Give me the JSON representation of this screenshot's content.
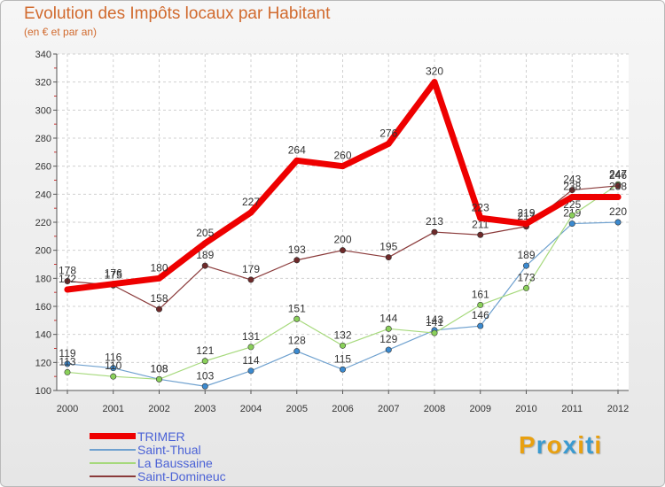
{
  "header": {
    "title": "Evolution des Impôts locaux par Habitant",
    "subtitle": "(en € et par an)"
  },
  "logo": {
    "text": "Proxiti",
    "colors": [
      "#e8a010",
      "#3a9ad0",
      "#e8a010",
      "#3a9ad0",
      "#e8a010",
      "#3a9ad0",
      "#e8a010"
    ]
  },
  "chart_data": {
    "type": "line",
    "title": "Evolution des Impôts locaux par Habitant",
    "subtitle": "(en € et par an)",
    "xlabel": "",
    "ylabel": "",
    "ylim": [
      100,
      340
    ],
    "yticks": [
      100,
      120,
      140,
      160,
      180,
      200,
      220,
      240,
      260,
      280,
      300,
      320,
      340
    ],
    "grid": true,
    "legend_position": "bottom-left",
    "x": [
      "2000",
      "2001",
      "2002",
      "2003",
      "2004",
      "2005",
      "2006",
      "2007",
      "2008",
      "2009",
      "2010",
      "2011",
      "2012"
    ],
    "series": [
      {
        "name": "Saint-Thual",
        "color": "#6fa1cf",
        "marker": "#3b8ad0",
        "width": 1.2,
        "markers": true,
        "values": [
          119,
          116,
          108,
          103,
          114,
          128,
          115,
          129,
          143,
          146,
          189,
          219,
          220
        ],
        "labels": [
          "119",
          "116",
          "108",
          "103",
          "114",
          "128",
          "115",
          "129",
          "143",
          "146",
          "189",
          "219",
          "220"
        ]
      },
      {
        "name": "La Baussaine",
        "color": "#a6d97c",
        "marker": "#8ad05a",
        "width": 1.2,
        "markers": true,
        "values": [
          113,
          110,
          108,
          121,
          131,
          151,
          132,
          144,
          141,
          161,
          173,
          225,
          247
        ],
        "labels": [
          "113",
          "110",
          "108",
          "121",
          "131",
          "151",
          "132",
          "144",
          "141",
          "161",
          "173",
          "225",
          "247"
        ]
      },
      {
        "name": "Saint-Domineuc",
        "color": "#8a3a3a",
        "marker": "#6e2a2a",
        "width": 1.2,
        "markers": true,
        "values": [
          178,
          175,
          158,
          189,
          179,
          193,
          200,
          195,
          213,
          211,
          217,
          243,
          246
        ],
        "labels": [
          "178",
          "175",
          "158",
          "189",
          "179",
          "193",
          "200",
          "195",
          "213",
          "211",
          "217",
          "243",
          "246"
        ]
      },
      {
        "name": "TRIMER",
        "color": "#ee0000",
        "marker": "#ee0000",
        "width": 7,
        "markers": false,
        "values": [
          172,
          176,
          180,
          205,
          227,
          264,
          260,
          276,
          320,
          223,
          219,
          238,
          238
        ],
        "labels": [
          "172",
          "176",
          "180",
          "205",
          "227",
          "264",
          "260",
          "276",
          "320",
          "223",
          "219",
          "238",
          "238"
        ]
      }
    ]
  },
  "legend": {
    "items": [
      {
        "label": "TRIMER",
        "color": "#ee0000",
        "thickness": 7
      },
      {
        "label": "Saint-Thual",
        "color": "#6fa1cf",
        "thickness": 2
      },
      {
        "label": "La Baussaine",
        "color": "#a6d97c",
        "thickness": 2
      },
      {
        "label": "Saint-Domineuc",
        "color": "#8a3a3a",
        "thickness": 2
      }
    ]
  }
}
